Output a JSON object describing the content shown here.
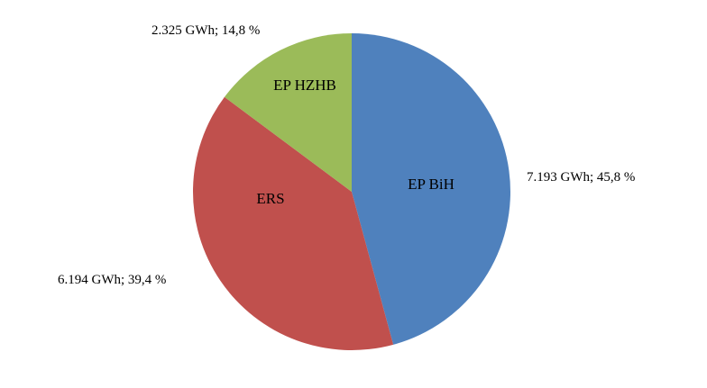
{
  "chart_data": {
    "type": "pie",
    "title": "",
    "slices": [
      {
        "label": "EP BiH",
        "value": 7193,
        "percent": 45.8,
        "data_label": "7.193 GWh; 45,8 %",
        "color": "#4f81bd",
        "edge_color": "#385d8a"
      },
      {
        "label": "ERS",
        "value": 6194,
        "percent": 39.4,
        "data_label": "6.194 GWh; 39,4 %",
        "color": "#c0504d",
        "edge_color": "#8c3836"
      },
      {
        "label": "EP HZHB",
        "value": 2325,
        "percent": 14.8,
        "data_label": "2.325 GWh; 14,8 %",
        "color": "#9bbb59",
        "edge_color": "#71893f"
      }
    ],
    "start": "12 o'clock",
    "direction": "clockwise",
    "legend": "none"
  }
}
